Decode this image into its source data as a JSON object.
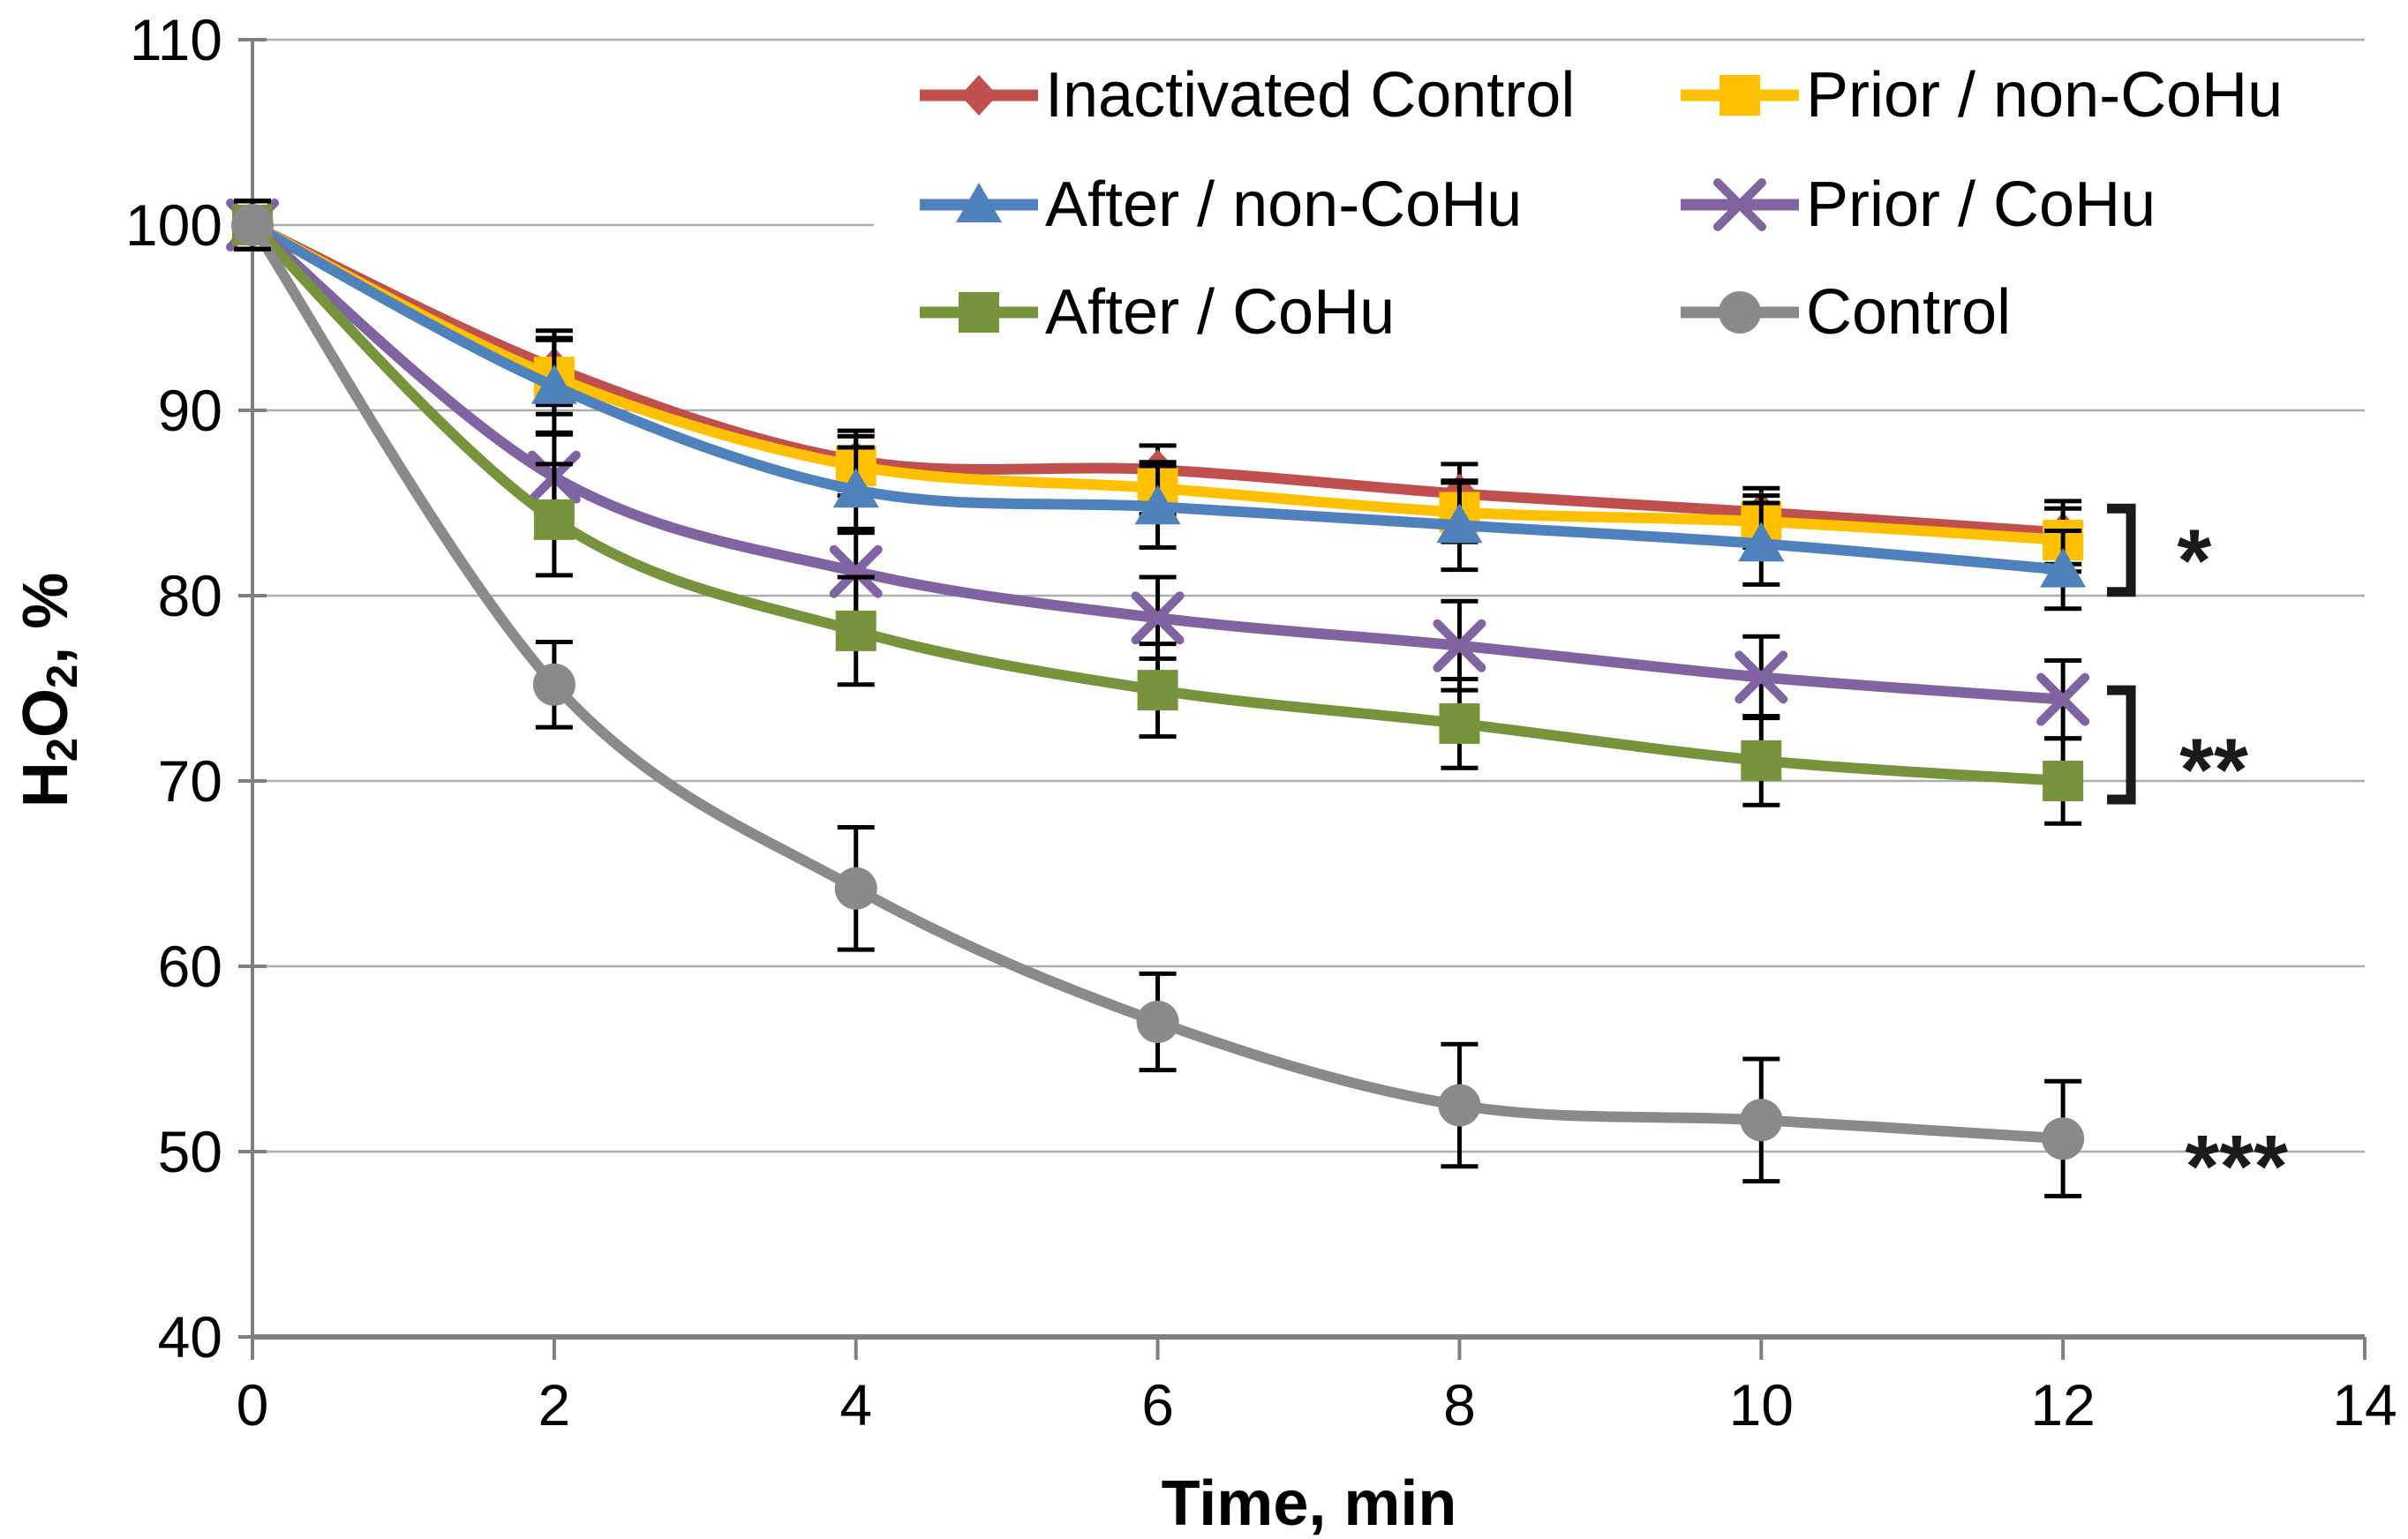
{
  "chart_data": {
    "type": "line",
    "title": "",
    "x": [
      0,
      2,
      4,
      6,
      8,
      10,
      12
    ],
    "series": [
      {
        "name": "Inactivated Control",
        "color": "#C0504D",
        "marker": "diamond",
        "values": [
          100,
          92.3,
          87.3,
          86.8,
          85.5,
          84.5,
          83.4
        ],
        "errors": [
          1.3,
          2.0,
          1.6,
          1.3,
          1.6,
          1.3,
          1.7
        ]
      },
      {
        "name": "Prior / non-CoHu",
        "color": "#FFC000",
        "marker": "square",
        "values": [
          100,
          91.8,
          87.0,
          85.8,
          84.5,
          84.0,
          83.0
        ],
        "errors": [
          1.3,
          2.0,
          1.6,
          1.4,
          1.6,
          1.4,
          1.7
        ]
      },
      {
        "name": "After / non-CoHu",
        "color": "#4F81BD",
        "marker": "triangle-up",
        "values": [
          100,
          91.3,
          85.7,
          84.8,
          83.8,
          82.8,
          81.4
        ],
        "errors": [
          1.3,
          2.6,
          2.3,
          2.2,
          2.4,
          2.2,
          2.1
        ]
      },
      {
        "name": "Prior / CoHu",
        "color": "#8064A2",
        "marker": "x",
        "values": [
          100,
          86.4,
          81.3,
          78.8,
          77.3,
          75.6,
          74.4
        ],
        "errors": [
          1.3,
          2.4,
          2.3,
          2.2,
          2.4,
          2.2,
          2.1
        ]
      },
      {
        "name": "After / CoHu",
        "color": "#77933C",
        "marker": "square",
        "values": [
          100,
          84.1,
          78.1,
          74.9,
          73.1,
          71.1,
          70.0
        ],
        "errors": [
          1.3,
          3.0,
          2.9,
          2.5,
          2.4,
          2.4,
          2.3
        ]
      },
      {
        "name": "Control",
        "color": "#8A8A8A",
        "marker": "circle",
        "values": [
          100,
          75.2,
          64.2,
          57.0,
          52.5,
          51.7,
          50.7
        ],
        "errors": [
          1.3,
          2.3,
          3.3,
          2.6,
          3.3,
          3.3,
          3.1
        ]
      }
    ],
    "axes": {
      "x": {
        "label": "Time, min",
        "ticks": [
          0,
          2,
          4,
          6,
          8,
          10,
          12,
          14
        ],
        "range": [
          0,
          14
        ]
      },
      "y": {
        "label": "H2O2, %",
        "label_parts": {
          "p1": "H",
          "s1": "2",
          "p2": "O",
          "s2": "2",
          "p3": ", %"
        },
        "ticks": [
          40,
          50,
          60,
          70,
          80,
          90,
          100,
          110
        ],
        "range": [
          40,
          110
        ]
      }
    },
    "grid": {
      "horizontal": true,
      "vertical": false
    },
    "error_bars": true,
    "legend": {
      "position": "top-inside",
      "columns": 2,
      "rows": 3
    },
    "annotations": [
      {
        "label": "*",
        "has_bracket": true,
        "bracket_time": 12.45,
        "bracket_top_value": 84.7,
        "bracket_bottom_value": 80.2,
        "label_time": 12.87,
        "label_value": 82.6
      },
      {
        "label": "**",
        "has_bracket": true,
        "bracket_time": 12.45,
        "bracket_top_value": 74.9,
        "bracket_bottom_value": 69.0,
        "label_time": 13.0,
        "label_value": 71.3
      },
      {
        "label": "***",
        "has_bracket": false,
        "label_time": 13.15,
        "label_value": 49.9
      }
    ],
    "style": {
      "gridline_color": "#ADADAD",
      "axis_color": "#808080",
      "error_bar_color": "#000000",
      "annotation_color": "#1A1A1A",
      "text_color": "#000000",
      "background": "#FFFFFF"
    }
  }
}
